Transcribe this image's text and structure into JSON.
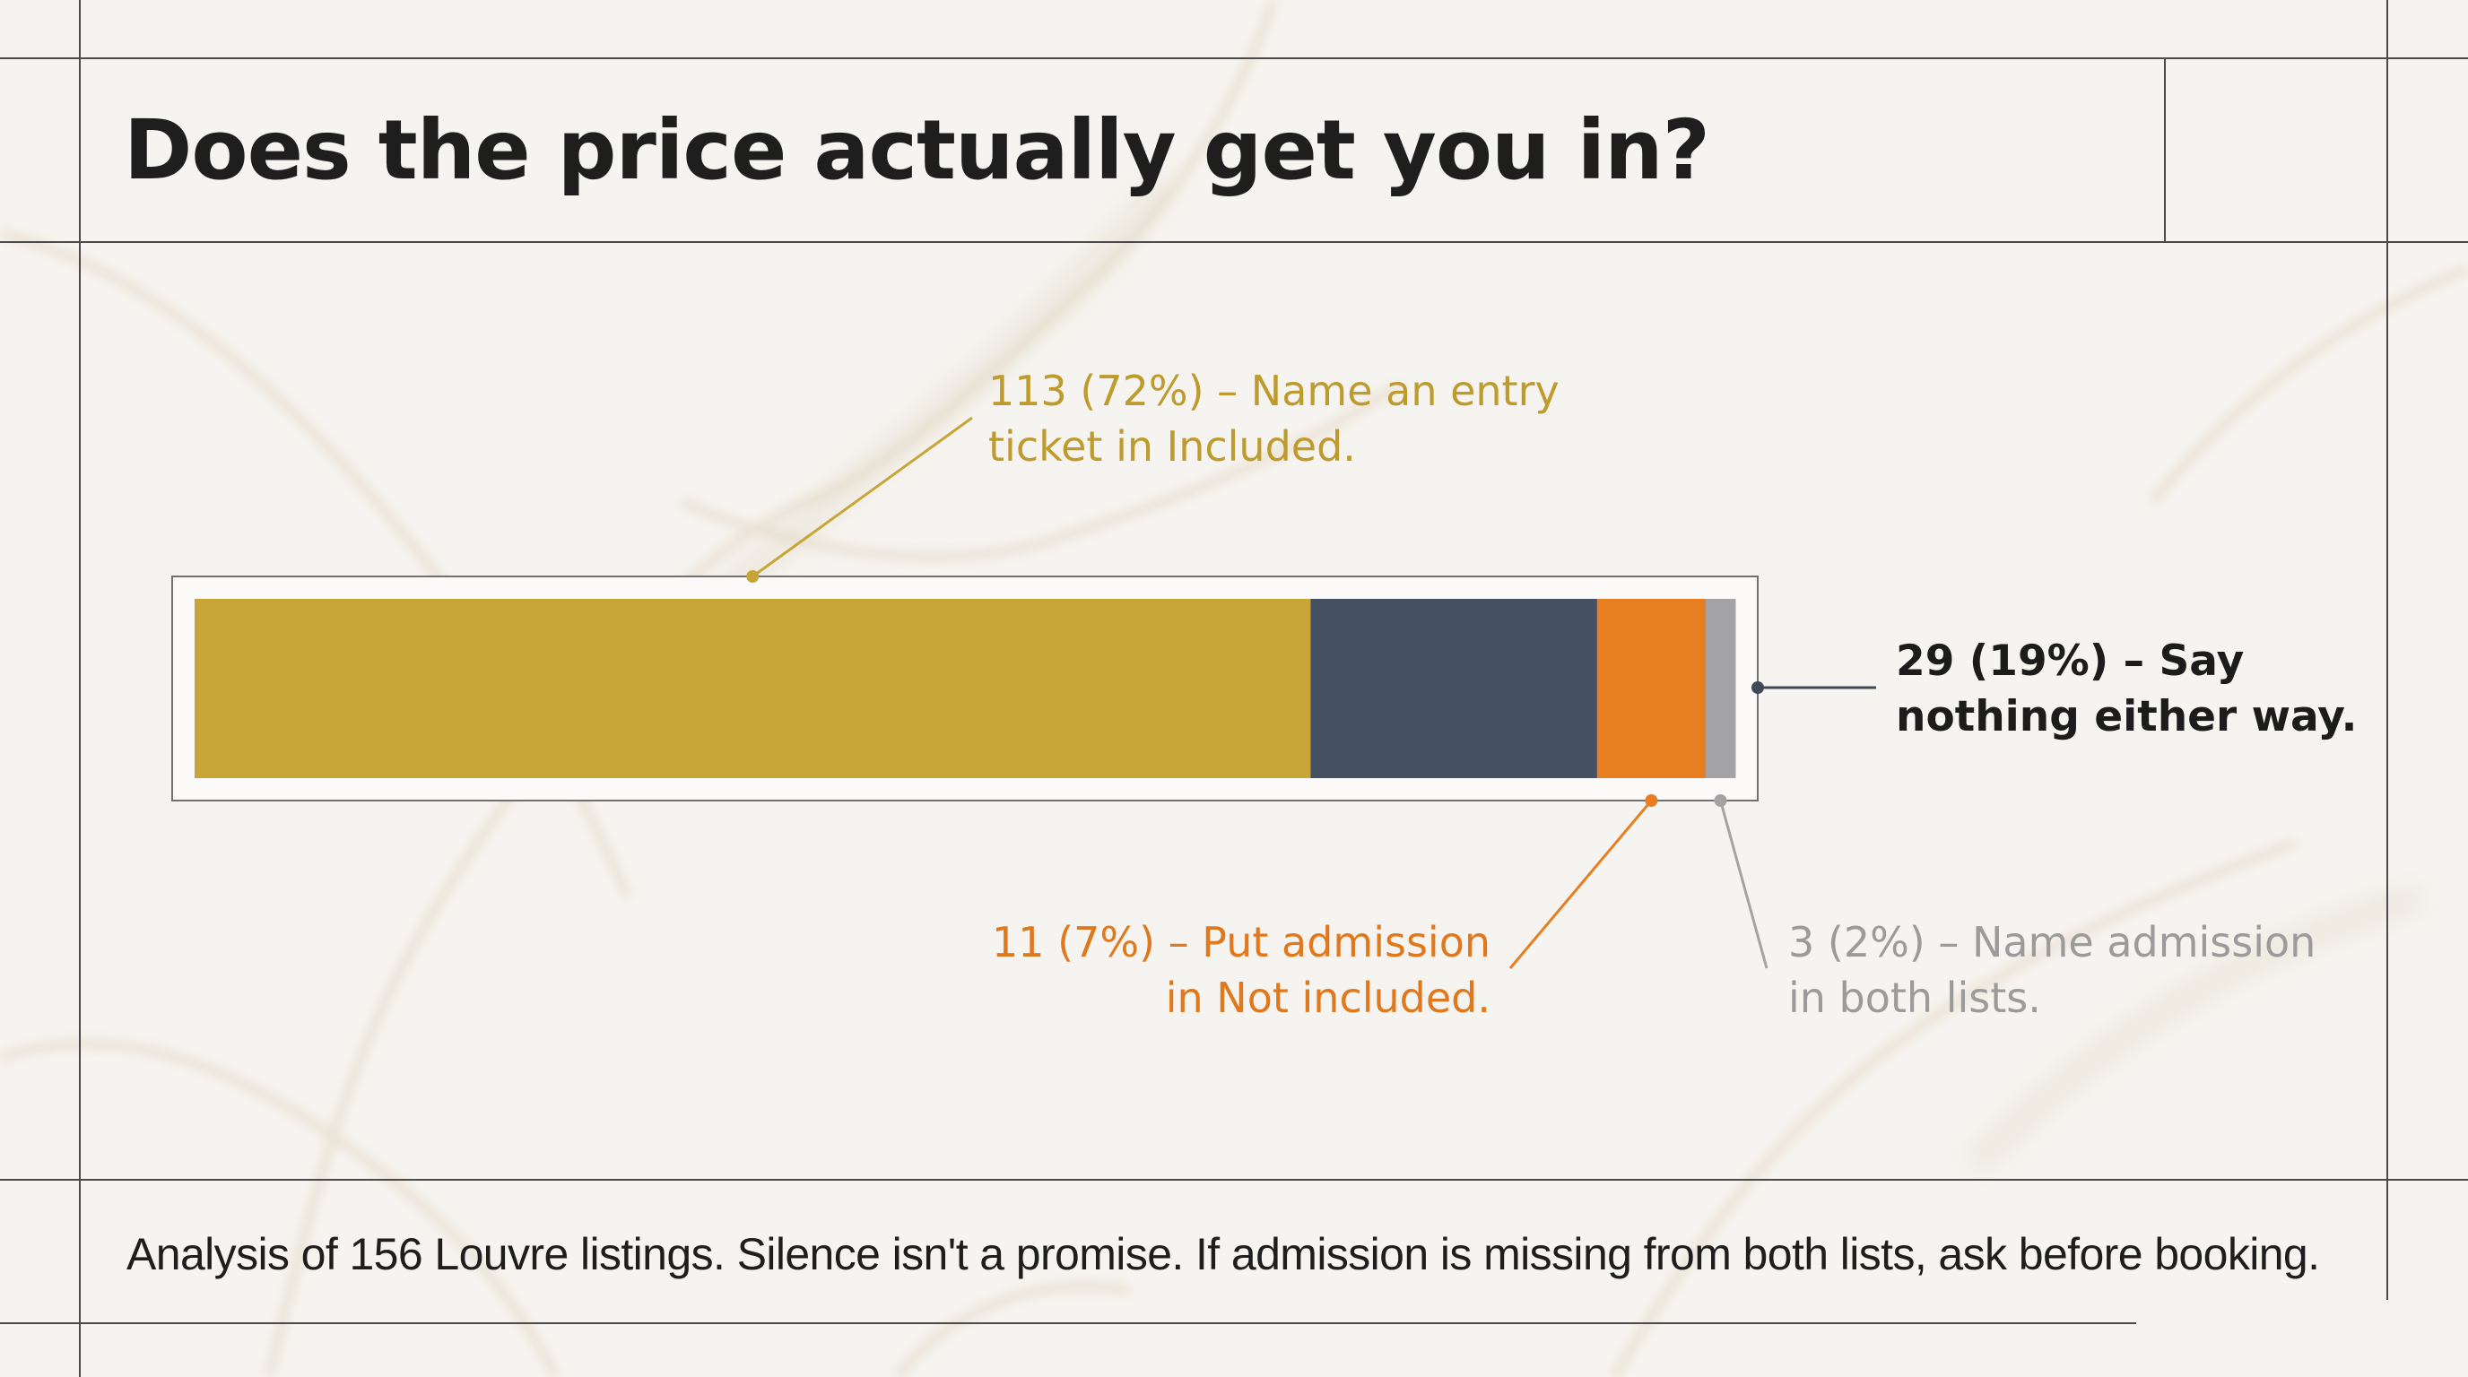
{
  "title": "Does the price actually get you in?",
  "footnote": "Analysis of 156 Louvre listings. Silence isn't a promise. If admission is missing from both lists, ask before booking.",
  "chart_data": {
    "type": "bar",
    "orientation": "horizontal",
    "stacked": true,
    "total": 156,
    "categories": [
      "Louvre listings"
    ],
    "series": [
      {
        "key": "included",
        "count": 113,
        "percent": 72,
        "label_lines": [
          "113 (72%) – Name an entry",
          "ticket in Included."
        ],
        "color": "#c8a537"
      },
      {
        "key": "silent",
        "count": 29,
        "percent": 19,
        "label_lines": [
          "29 (19%) – Say",
          "nothing either way."
        ],
        "color": "#465263"
      },
      {
        "key": "not_included",
        "count": 11,
        "percent": 7,
        "label_lines": [
          "11 (7%) – Put admission",
          "in Not included."
        ],
        "color": "#e77e22"
      },
      {
        "key": "both",
        "count": 3,
        "percent": 2,
        "label_lines": [
          "3 (2%) – Name admission",
          "in both lists."
        ],
        "color": "#a3a3a5"
      }
    ],
    "xlim": [
      0,
      156
    ],
    "grid": false,
    "legend": "none"
  }
}
